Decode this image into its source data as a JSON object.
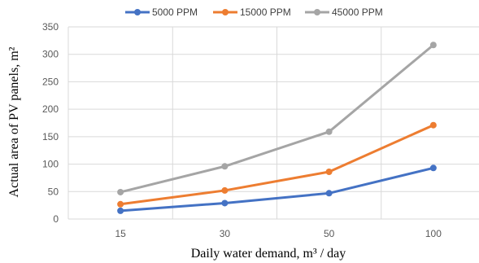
{
  "chart_data": {
    "type": "line",
    "categories": [
      "15",
      "30",
      "50",
      "100"
    ],
    "series": [
      {
        "name": "5000 PPM",
        "values": [
          15,
          29,
          47,
          93
        ],
        "color": "#4472C4"
      },
      {
        "name": "15000 PPM",
        "values": [
          27,
          52,
          86,
          171
        ],
        "color": "#ED7D31"
      },
      {
        "name": "45000 PPM",
        "values": [
          49,
          96,
          159,
          317
        ],
        "color": "#A5A5A5"
      }
    ],
    "xlabel": "Daily water demand, m³ / day",
    "ylabel": "Actual area of PV panels, m²",
    "ylim": [
      0,
      350
    ],
    "yticks": [
      "0",
      "50",
      "100",
      "150",
      "200",
      "250",
      "300",
      "350"
    ],
    "grid": true,
    "legend": "top"
  }
}
